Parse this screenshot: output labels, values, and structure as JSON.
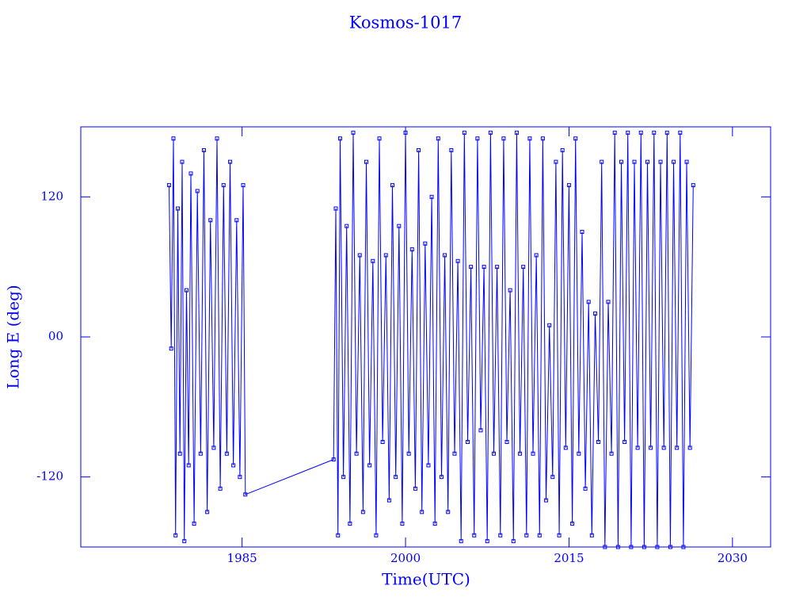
{
  "chart_data": {
    "type": "line",
    "title": "Kosmos-1017",
    "x_label": "Time(UTC)",
    "y_label": "Long E (deg)",
    "xlim": [
      1970.2,
      2033.5
    ],
    "xticks": [
      1985,
      2000,
      2015,
      2030
    ],
    "ylim": [
      -180,
      180
    ],
    "yticks": [
      -120,
      {
        "value": 0,
        "label": "00"
      },
      120
    ],
    "series": [
      {
        "color": "#0000ff",
        "x": [
          1978.3,
          1978.5,
          1978.7,
          1978.9,
          1979.1,
          1979.3,
          1979.5,
          1979.7,
          1979.9,
          1980.1,
          1980.3,
          1980.6,
          1980.9,
          1981.2,
          1981.5,
          1981.8,
          1982.1,
          1982.4,
          1982.7,
          1983.0,
          1983.3,
          1983.6,
          1983.9,
          1984.2,
          1984.5,
          1984.8,
          1985.1,
          1985.3,
          1993.4,
          1993.6,
          1993.8,
          1994.0,
          1994.3,
          1994.6,
          1994.9,
          1995.2,
          1995.5,
          1995.8,
          1996.1,
          1996.4,
          1996.7,
          1997.0,
          1997.3,
          1997.6,
          1997.9,
          1998.2,
          1998.5,
          1998.8,
          1999.1,
          1999.4,
          1999.7,
          2000.0,
          2000.3,
          2000.6,
          2000.9,
          2001.2,
          2001.5,
          2001.8,
          2002.1,
          2002.4,
          2002.7,
          2003.0,
          2003.3,
          2003.6,
          2003.9,
          2004.2,
          2004.5,
          2004.8,
          2005.1,
          2005.4,
          2005.7,
          2006.0,
          2006.3,
          2006.6,
          2006.9,
          2007.2,
          2007.5,
          2007.8,
          2008.1,
          2008.4,
          2008.7,
          2009.0,
          2009.3,
          2009.6,
          2009.9,
          2010.2,
          2010.5,
          2010.8,
          2011.1,
          2011.4,
          2011.7,
          2012.0,
          2012.3,
          2012.6,
          2012.9,
          2013.2,
          2013.5,
          2013.8,
          2014.1,
          2014.4,
          2014.7,
          2015.0,
          2015.3,
          2015.6,
          2015.9,
          2016.2,
          2016.5,
          2016.8,
          2017.1,
          2017.4,
          2017.7,
          2018.0,
          2018.3,
          2018.6,
          2018.9,
          2019.2,
          2019.5,
          2019.8,
          2020.1,
          2020.4,
          2020.7,
          2021.0,
          2021.3,
          2021.6,
          2021.9,
          2022.2,
          2022.5,
          2022.8,
          2023.1,
          2023.4,
          2023.7,
          2024.0,
          2024.3,
          2024.6,
          2024.9,
          2025.2,
          2025.5,
          2025.8,
          2026.1,
          2026.4
        ],
        "values": [
          130,
          -10,
          170,
          -170,
          110,
          -100,
          150,
          -175,
          40,
          -110,
          140,
          -160,
          125,
          -100,
          160,
          -150,
          100,
          -95,
          170,
          -130,
          130,
          -100,
          150,
          -110,
          100,
          -120,
          130,
          -135,
          -105,
          110,
          -170,
          170,
          -120,
          95,
          -160,
          175,
          -100,
          70,
          -150,
          150,
          -110,
          65,
          -170,
          170,
          -90,
          70,
          -140,
          130,
          -120,
          95,
          -160,
          175,
          -100,
          75,
          -130,
          160,
          -150,
          80,
          -110,
          120,
          -160,
          170,
          -120,
          70,
          -150,
          160,
          -100,
          65,
          -175,
          175,
          -90,
          60,
          -170,
          170,
          -80,
          60,
          -175,
          175,
          -100,
          60,
          -170,
          170,
          -90,
          40,
          -175,
          175,
          -100,
          60,
          -170,
          170,
          -100,
          70,
          -170,
          170,
          -140,
          10,
          -120,
          150,
          -170,
          160,
          -95,
          130,
          -160,
          170,
          -100,
          90,
          -130,
          30,
          -170,
          20,
          -90,
          150,
          -180,
          30,
          -100,
          175,
          -180,
          150,
          -90,
          175,
          -180,
          150,
          -95,
          175,
          -180,
          150,
          -95,
          175,
          -180,
          150,
          -95,
          175,
          -180,
          150,
          -95,
          175,
          -180,
          150,
          -95,
          130
        ]
      }
    ]
  }
}
